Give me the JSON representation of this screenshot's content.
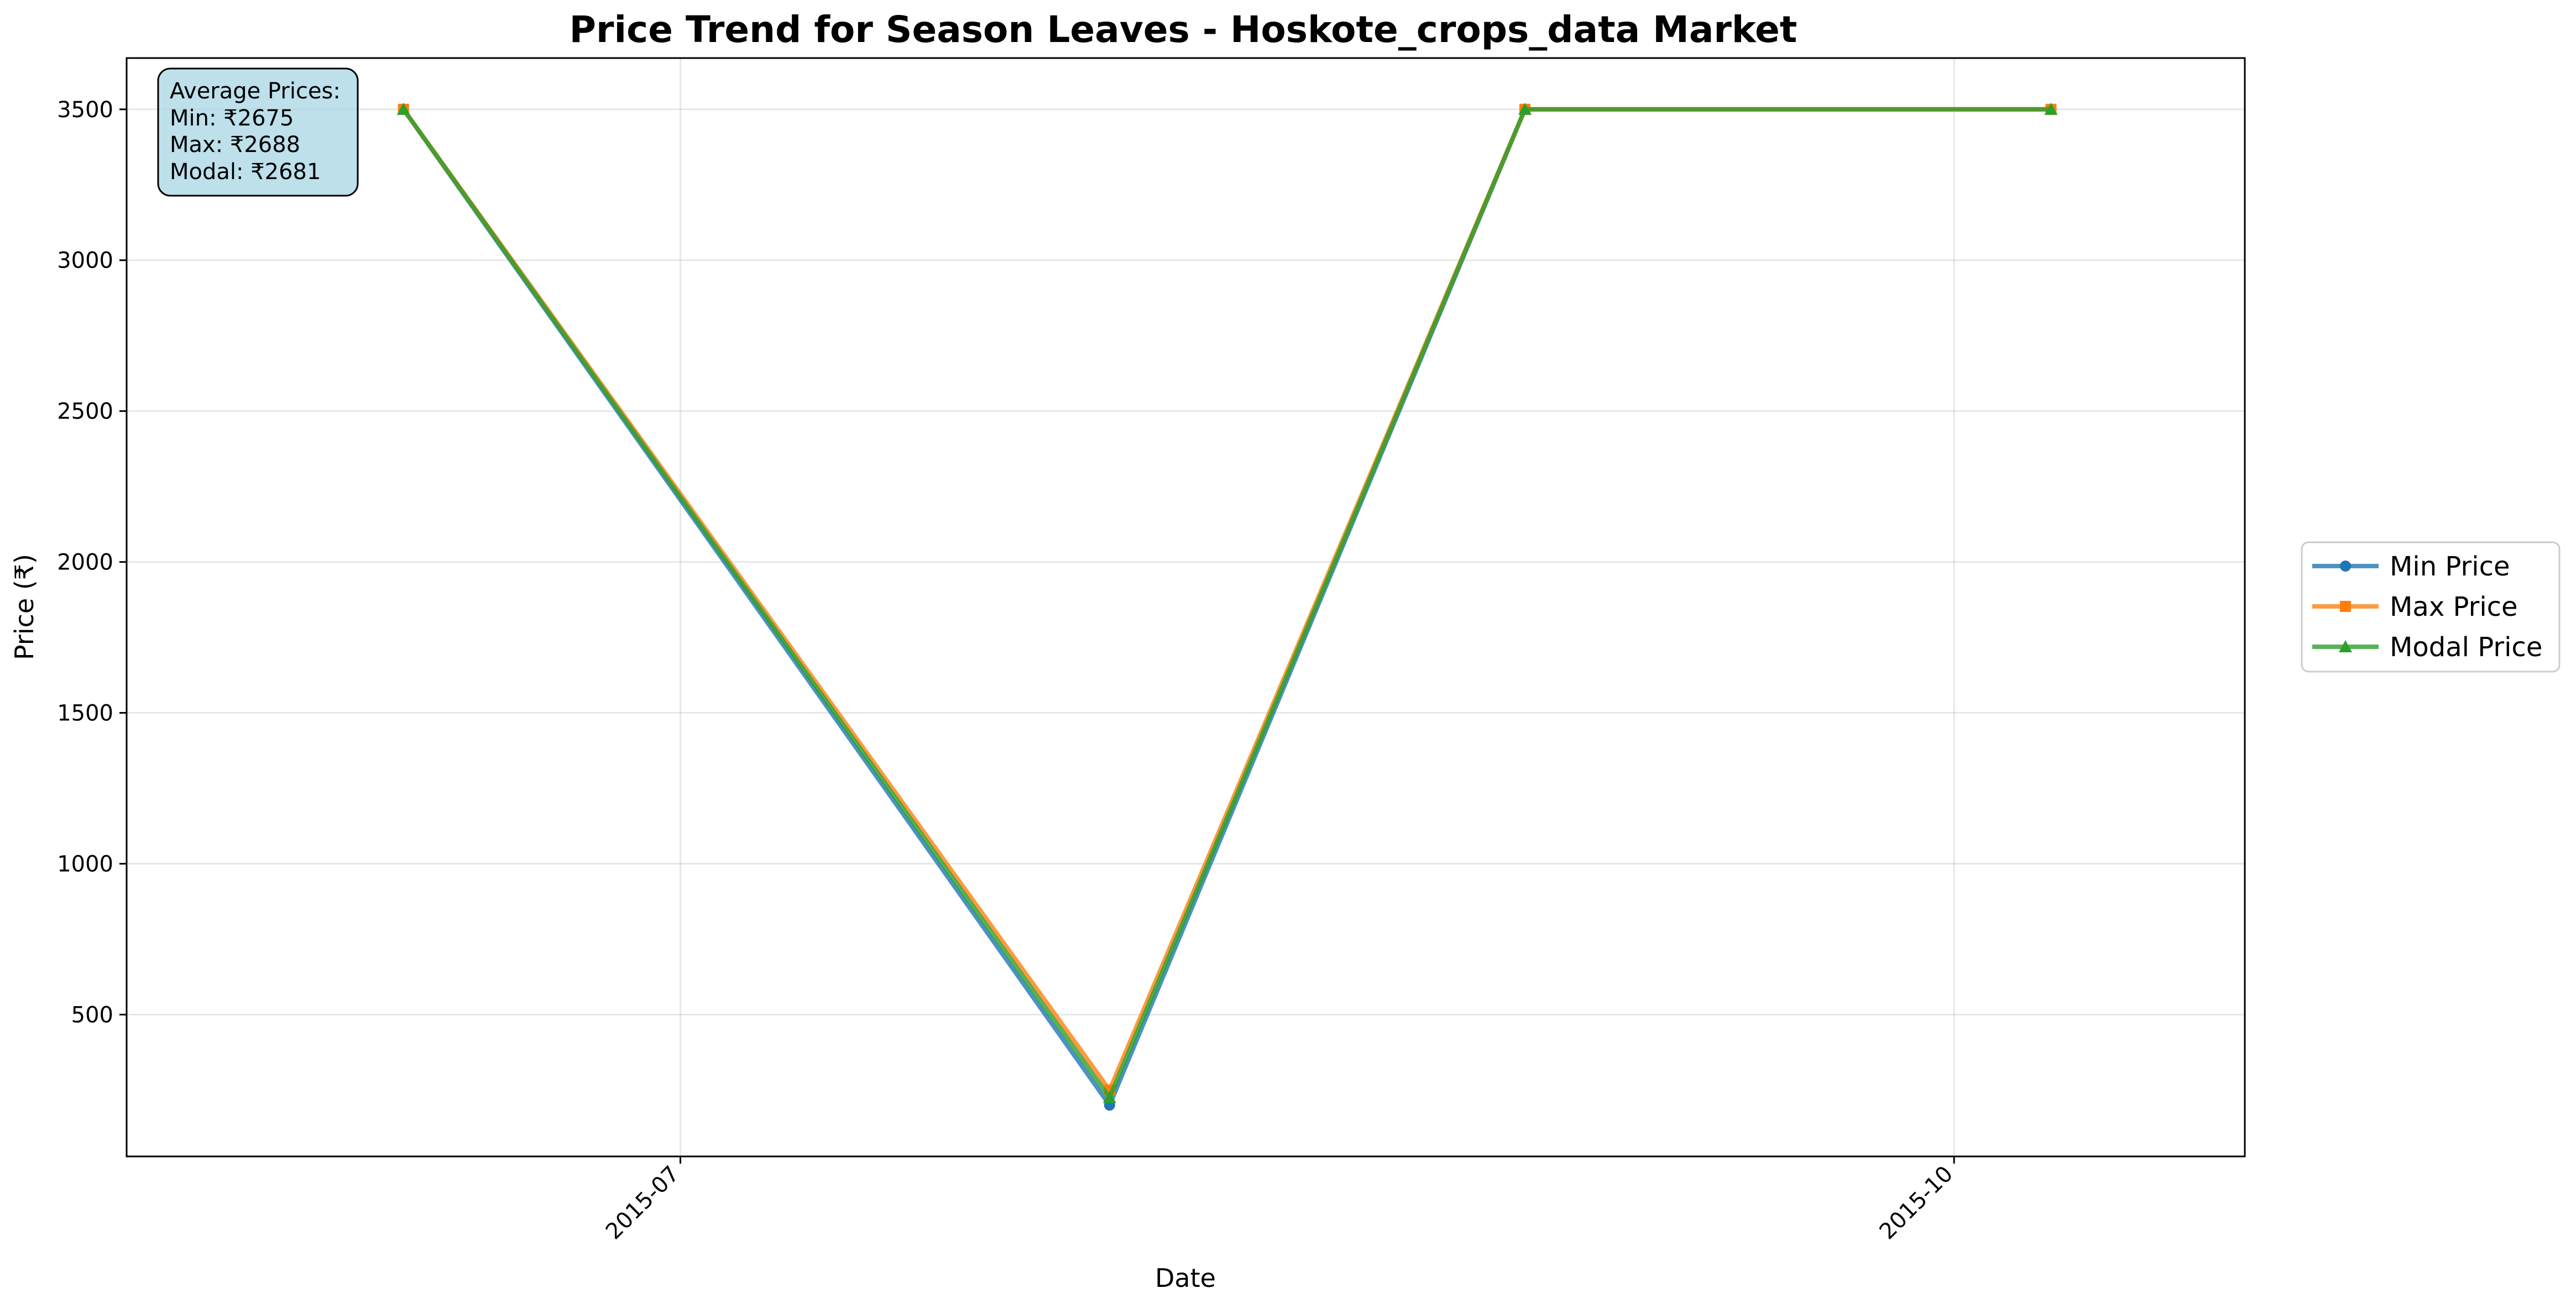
{
  "chart_data": {
    "type": "line",
    "title": "Price Trend for Season Leaves - Hoskote_crops_data Market",
    "xlabel": "Date",
    "ylabel": "Price (₹)",
    "x": [
      "2015-06-11",
      "2015-08-01",
      "2015-08-31",
      "2015-10-08"
    ],
    "xlim": [
      "2015-05-22",
      "2015-10-22"
    ],
    "xticks": [
      {
        "label": "2015-07",
        "date": "2015-07-01"
      },
      {
        "label": "2015-10",
        "date": "2015-10-01"
      }
    ],
    "ylim": [
      30,
      3670
    ],
    "yticks": [
      500,
      1000,
      1500,
      2000,
      2500,
      3000,
      3500
    ],
    "grid": true,
    "legend_position": "right",
    "series": [
      {
        "name": "Min Price",
        "color": "#1f77b4",
        "marker": "circle",
        "values": [
          3500,
          200,
          3500,
          3500
        ]
      },
      {
        "name": "Max Price",
        "color": "#ff7f0e",
        "marker": "square",
        "values": [
          3500,
          250,
          3500,
          3500
        ]
      },
      {
        "name": "Modal Price",
        "color": "#2ca02c",
        "marker": "triangle",
        "values": [
          3500,
          225,
          3500,
          3500
        ]
      }
    ],
    "annotation": {
      "title": "Average Prices:",
      "lines": [
        "Min: ₹2675",
        "Max: ₹2688",
        "Modal: ₹2681"
      ]
    }
  }
}
